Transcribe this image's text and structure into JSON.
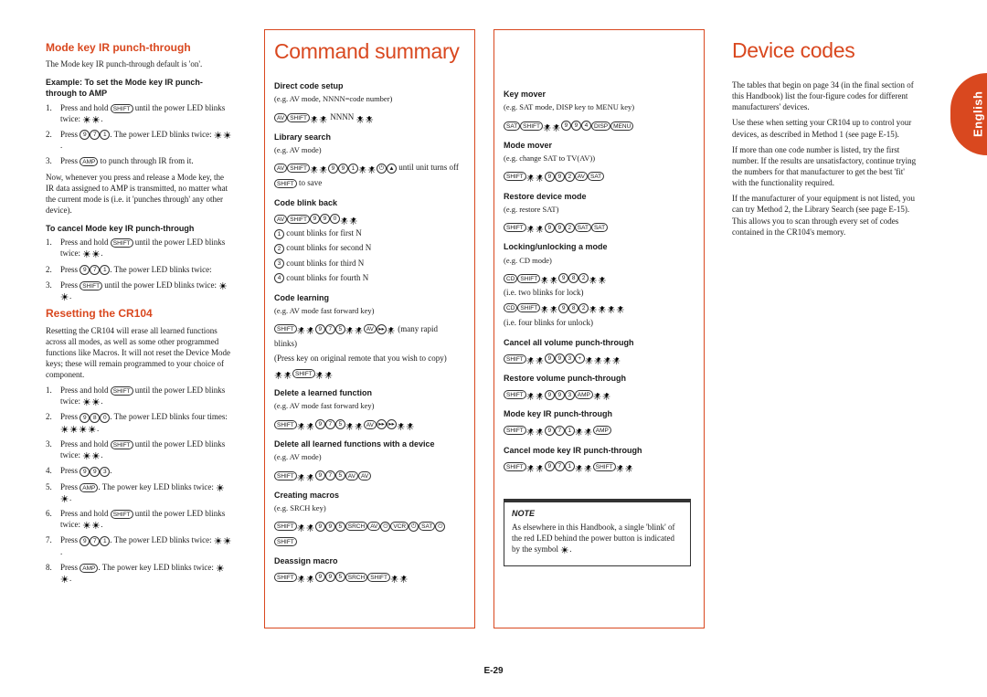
{
  "page": {
    "number": "E-29",
    "lang": "English"
  },
  "colors": {
    "accent": "#d9481f",
    "text": "#1a1a1a",
    "bg": "#ffffff"
  },
  "col1": {
    "h_mode": "Mode key IR punch-through",
    "mode_intro": "The Mode key IR punch-through default is 'on'.",
    "ex_head": "Example: To set the Mode key IR punch-through to AMP",
    "ex_steps": [
      "Press and hold <SHIFT> until the power LED blinks twice: <*><*>.",
      "Press <9><7><1>. The power LED blinks twice: <*><*>.",
      "Press <AMP> to punch through IR from it."
    ],
    "punch_note": "Now, whenever you press and release a Mode key, the IR data assigned to AMP is transmitted, no matter what the current mode is (i.e. it 'punches through' any other device).",
    "cancel_head": "To cancel Mode key IR punch-through",
    "cancel_steps": [
      "Press and hold <SHIFT> until the power LED blinks twice: <*><*>.",
      "Press <9><7><1>. The power LED blinks twice:",
      "Press <SHIFT> until the power LED blinks twice: <*><*>."
    ],
    "h_reset": "Resetting the CR104",
    "reset_intro": "Resetting the CR104 will erase all learned functions across all modes, as well as some other programmed functions like Macros. It will not reset the Device Mode keys; these will remain programmed to your choice of component.",
    "reset_steps": [
      "Press and hold <SHIFT> until the power LED blinks twice: <*><*>.",
      "Press <9><8><0>. The power LED blinks four times: <*><*><*><*>.",
      "Press and hold <SHIFT> until the power LED blinks twice: <*><*>.",
      "Press <9><9><3>.",
      "Press <AMP>. The power key LED blinks twice: <*><*>.",
      "Press and hold <SHIFT> until the power LED blinks twice: <*><*>.",
      "Press <9><7><1>. The power LED blinks twice: <*><*>.",
      "Press <AMP>. The power key LED blinks twice: <*><*>."
    ]
  },
  "col2": {
    "h": "Command summary",
    "sections": [
      {
        "t": "Direct code setup",
        "eg": "(e.g. AV mode, NNNN=code number)",
        "seq": "<AV><SHIFT><*><*> NNNN <*><*>"
      },
      {
        "t": "Library search",
        "eg": "(e.g. AV mode)",
        "seq": "<AV><SHIFT><*><*><9><9><1><*><*><PWR><CH+> until unit turns off\n<SHIFT> to save"
      },
      {
        "t": "Code blink back",
        "eg": "",
        "seq": "<AV><SHIFT><9><9><0><*><*>\n<1> count blinks for first N\n<2> count blinks for second N\n<3> count blinks for third N\n<4> count blinks for fourth N"
      },
      {
        "t": "Code learning",
        "eg": "(e.g. AV mode fast forward key)",
        "seq": "<SHIFT><*><*><9><7><5><*><*><AV><FF><*> (many rapid blinks)\n(Press key on original remote that you wish to copy)\n<*><*><SHIFT><*><*>"
      },
      {
        "t": "Delete a learned function",
        "eg": "(e.g. AV mode fast forward key)",
        "seq": "<SHIFT><*><*><9><7><5><*><*><AV><FF><FF><*><*>"
      },
      {
        "t": "Delete all learned functions with a device",
        "eg": "(e.g. AV mode)",
        "seq": "<SHIFT><*><*><9><7><5><AV><AV>"
      },
      {
        "t": "Creating macros",
        "eg": "(e.g. SRCH key)",
        "seq": "<SHIFT><*><*><9><9><5><SRCH><AV><PWR><VCR><PWR><SAT><PWR><SHIFT>"
      },
      {
        "t": "Deassign macro",
        "eg": "",
        "seq": "<SHIFT><*><*><9><9><5><SRCH><SHIFT><*><*>"
      }
    ]
  },
  "col3": {
    "sections": [
      {
        "t": "Key mover",
        "eg": "(e.g. SAT mode, DISP key to MENU key)",
        "seq": "<SAT><SHIFT><*><*><9><9><4><DISP><MENU>"
      },
      {
        "t": "Mode mover",
        "eg": "(e.g. change SAT to TV(AV))",
        "seq": "<SHIFT><*><*><9><9><2><AV><SAT>"
      },
      {
        "t": "Restore device mode",
        "eg": "(e.g. restore SAT)",
        "seq": "<SHIFT><*><*><9><9><2><SAT><SAT>"
      },
      {
        "t": "Locking/unlocking a mode",
        "eg": "(e.g. CD mode)",
        "seq": "<CD><SHIFT><*><*><9><8><2><*><*>\n(i.e. two blinks for lock)\n<CD><SHIFT><*><*><9><8><2><*><*><*><*>\n(i.e. four blinks for unlock)"
      },
      {
        "t": "Cancel all volume punch-through",
        "eg": "",
        "seq": "<SHIFT><*><*><9><9><3><V+><*><*><*><*>"
      },
      {
        "t": "Restore volume punch-through",
        "eg": "",
        "seq": "<SHIFT><*><*><9><9><3><AMP><*><*>"
      },
      {
        "t": "Mode key IR punch-through",
        "eg": "",
        "seq": "<SHIFT><*><*><9><7><1><*><*><AMP>"
      },
      {
        "t": "Cancel mode key IR punch-through",
        "eg": "",
        "seq": "<SHIFT><*><*><9><7><1><*><*><SHIFT><*><*>"
      }
    ],
    "note_head": "NOTE",
    "note_body": "As elsewhere in this Handbook, a single 'blink' of the red LED behind the power button is indicated by the symbol <*>."
  },
  "col4": {
    "h": "Device codes",
    "paras": [
      "The tables that begin on page 34 (in the final section of this Handbook) list the four-figure codes for different manufacturers' devices.",
      "Use these when setting your CR104 up to control your devices, as described in Method 1 (see page E-15).",
      "If more than one code number is listed, try the first number. If the results are unsatisfactory, continue trying the numbers for that manufacturer to get the best 'fit' with the functionality required.",
      "If the manufacturer of your equipment is not listed, you can try Method 2, the Library Search (see page E-15). This allows you to scan through every set of codes contained in the CR104's memory."
    ]
  }
}
